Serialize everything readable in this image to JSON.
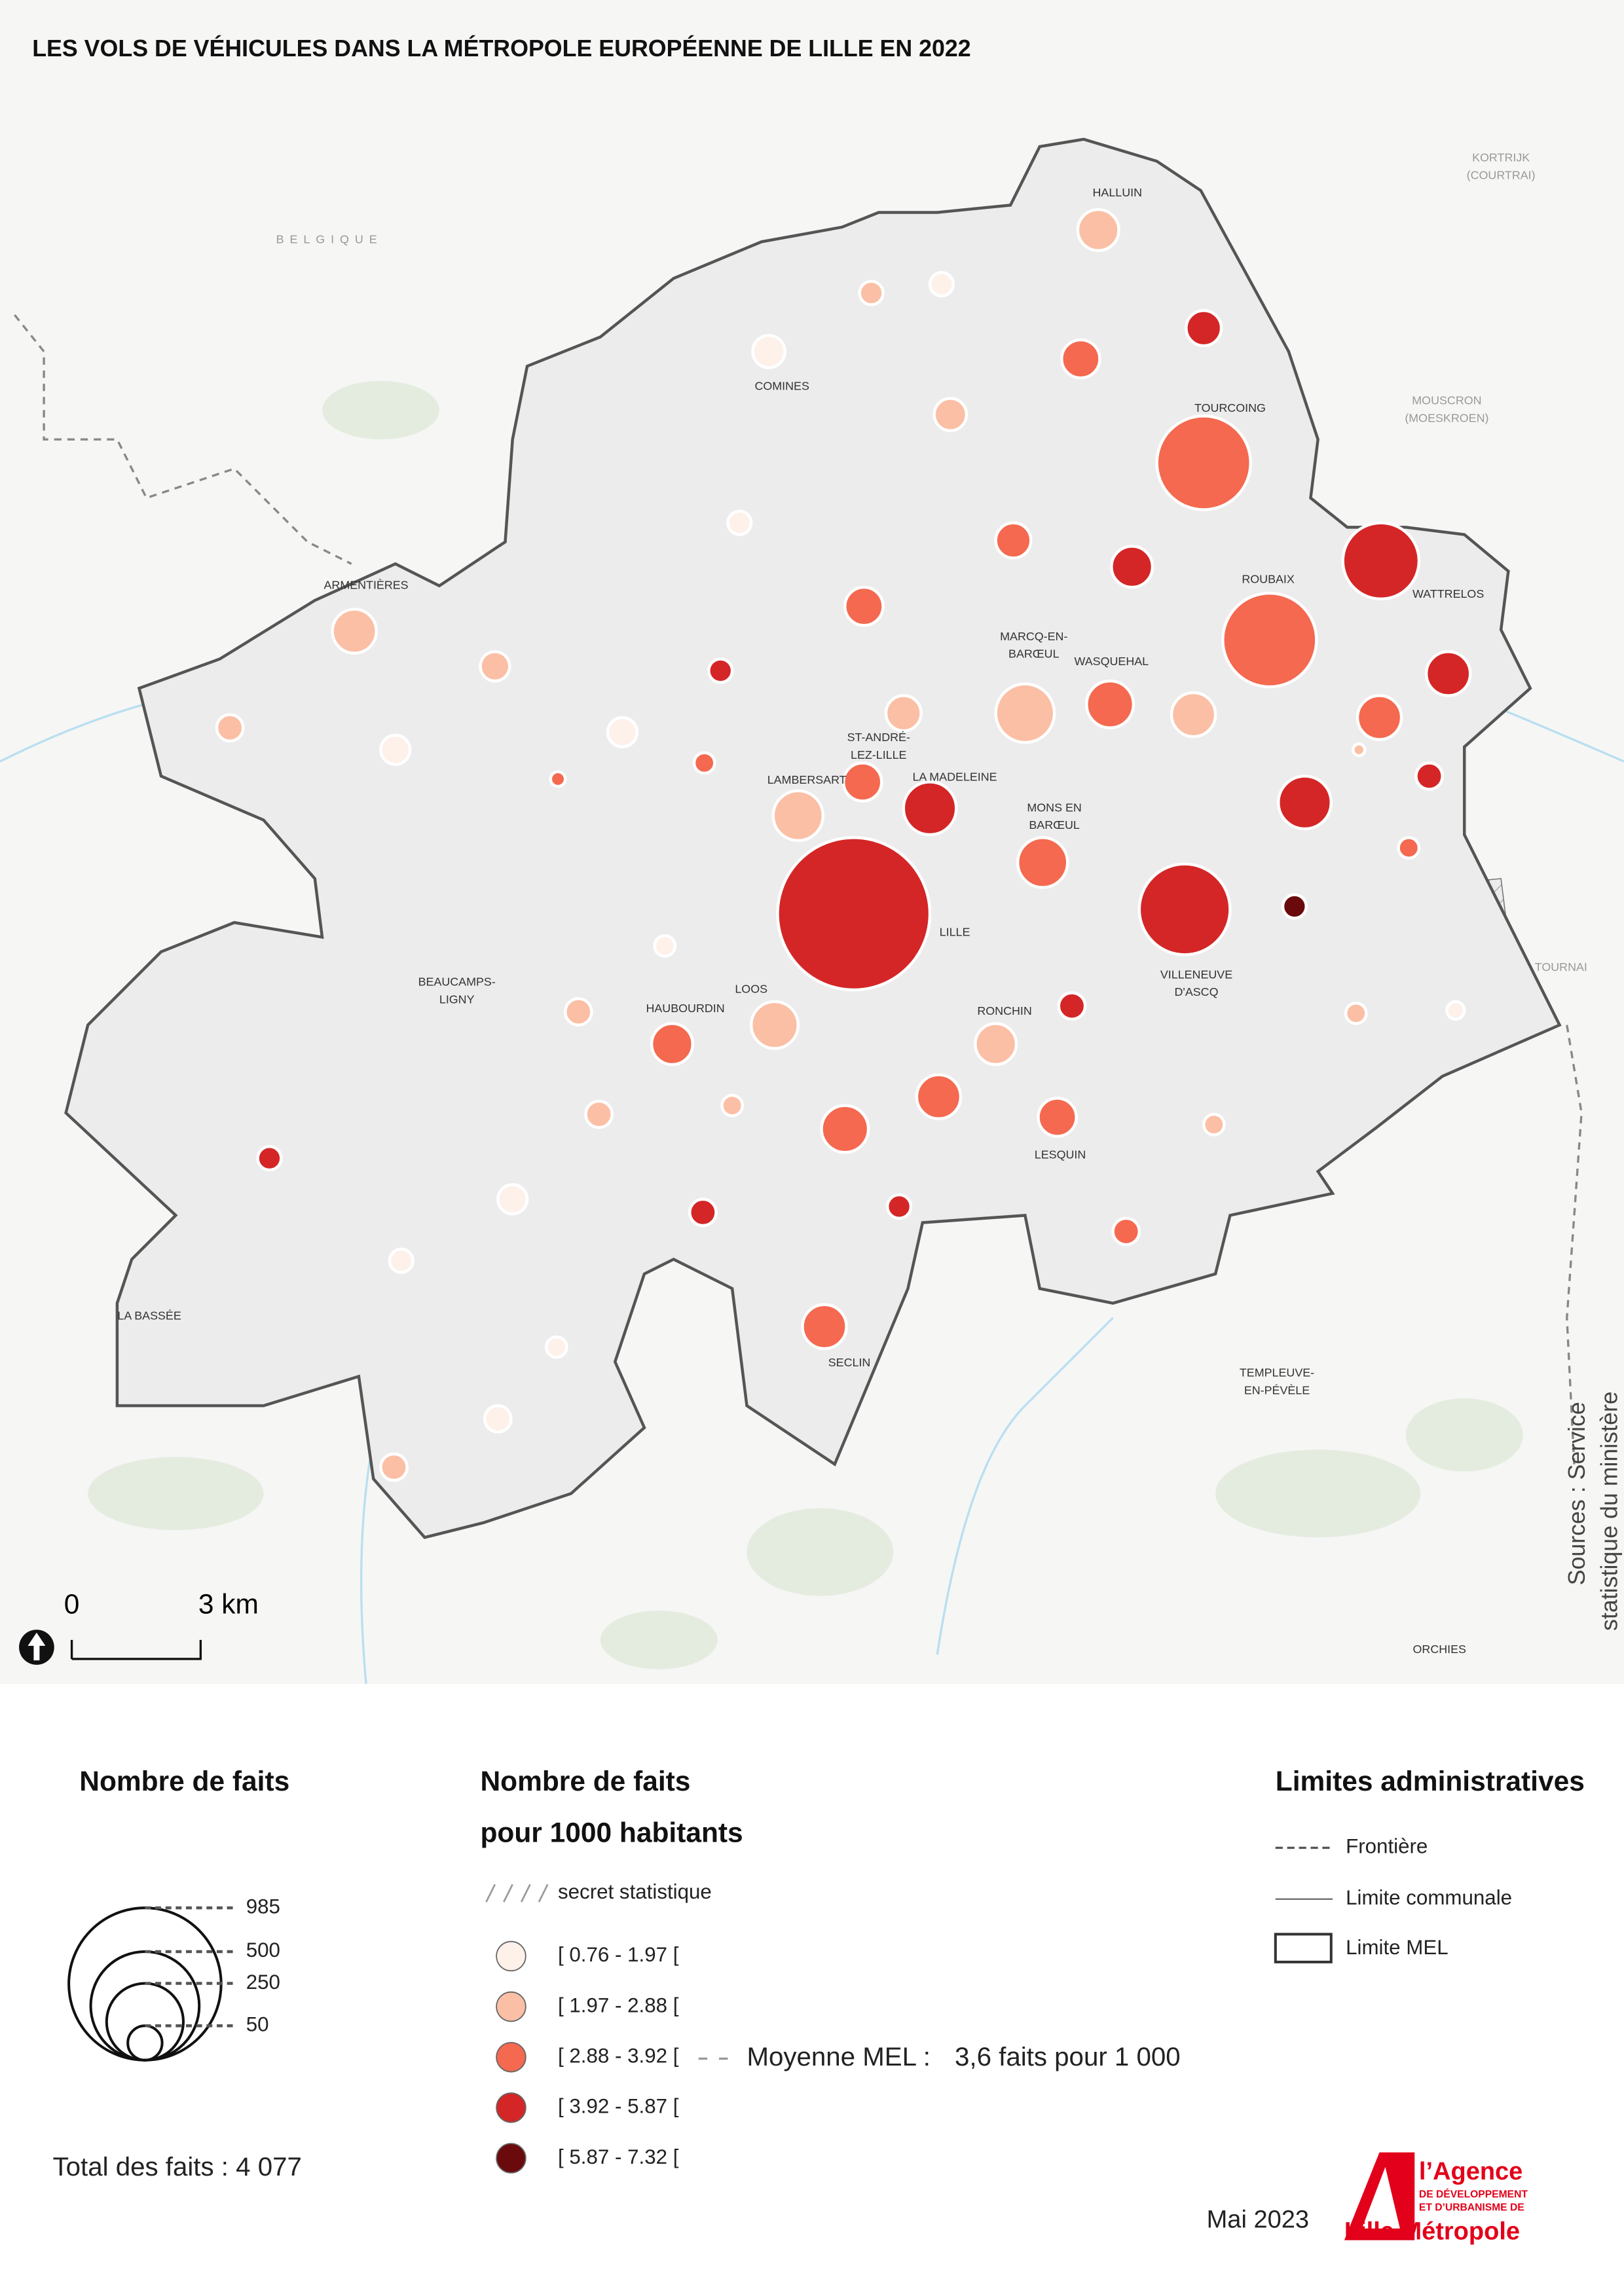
{
  "title": "LES VOLS DE VÉHICULES DANS LA MÉTROPOLE EUROPÉENNE DE LILLE EN 2022",
  "map": {
    "places": [
      {
        "lines": [
          "BELGIQUE"
        ]
      },
      {
        "lines": [
          "KORTRIJK",
          "(COURTRAI)"
        ]
      },
      {
        "lines": [
          "MOUSCRON",
          "(MOESKROEN)"
        ]
      },
      {
        "lines": [
          "TOURNAI"
        ]
      },
      {
        "lines": [
          "TEMPLEUVE-",
          "EN-PÉVÈLE"
        ]
      },
      {
        "lines": [
          "ORCHIES"
        ]
      },
      {
        "lines": [
          "HALLUIN"
        ]
      },
      {
        "lines": [
          "COMINES"
        ]
      },
      {
        "lines": [
          "TOURCOING"
        ]
      },
      {
        "lines": [
          "ARMENTIÈRES"
        ]
      },
      {
        "lines": [
          "ROUBAIX"
        ]
      },
      {
        "lines": [
          "WATTRELOS"
        ]
      },
      {
        "lines": [
          "MARCQ-EN-",
          "BARŒUL"
        ]
      },
      {
        "lines": [
          "WASQUEHAL"
        ]
      },
      {
        "lines": [
          "ST-ANDRÉ-",
          "LEZ-LILLE"
        ]
      },
      {
        "lines": [
          "LA MADELEINE"
        ]
      },
      {
        "lines": [
          "LAMBERSART"
        ]
      },
      {
        "lines": [
          "MONS EN",
          "BARŒUL"
        ]
      },
      {
        "lines": [
          "LILLE"
        ]
      },
      {
        "lines": [
          "VILLENEUVE",
          "D'ASCQ"
        ]
      },
      {
        "lines": [
          "LOOS"
        ]
      },
      {
        "lines": [
          "HAUBOURDIN"
        ]
      },
      {
        "lines": [
          "RONCHIN"
        ]
      },
      {
        "lines": [
          "BEAUCAMPS-",
          "LIGNY"
        ]
      },
      {
        "lines": [
          "LESQUIN"
        ]
      },
      {
        "lines": [
          "LA BASSÉE"
        ]
      },
      {
        "lines": [
          "SECLIN"
        ]
      }
    ],
    "scale": {
      "start": "0",
      "end": "3 km"
    },
    "sources": [
      "Sources : Service",
      "statistique du ministère"
    ]
  },
  "legend": {
    "size": {
      "title": "Nombre de faits",
      "values": [
        985,
        500,
        250,
        50
      ]
    },
    "rate": {
      "title": [
        "Nombre de faits",
        "pour 1000 habitants"
      ],
      "secret": "secret statistique",
      "classes": [
        {
          "label": "[ 0.76 - 1.97 [",
          "color": "#fdf1ea"
        },
        {
          "label": "[ 1.97 - 2.88 [",
          "color": "#fbbfa5"
        },
        {
          "label": "[ 2.88 - 3.92 [",
          "color": "#f4694f"
        },
        {
          "label": "[ 3.92 - 5.87 [",
          "color": "#d42626"
        },
        {
          "label": "[ 5.87 - 7.32 [",
          "color": "#6b0a0c"
        }
      ],
      "average": {
        "label": "Moyenne MEL :",
        "text": "3,6 faits pour 1 000"
      }
    },
    "limits": {
      "title": "Limites administratives",
      "items": [
        "Frontière",
        "Limite communale",
        "Limite MEL"
      ]
    }
  },
  "total": "Total des faits : 4 077",
  "date": "Mai 2023",
  "logo": [
    "l’Agence",
    "DE DÉVELOPPEMENT",
    "ET D’URBANISME DE",
    "Lille Métropole"
  ]
}
